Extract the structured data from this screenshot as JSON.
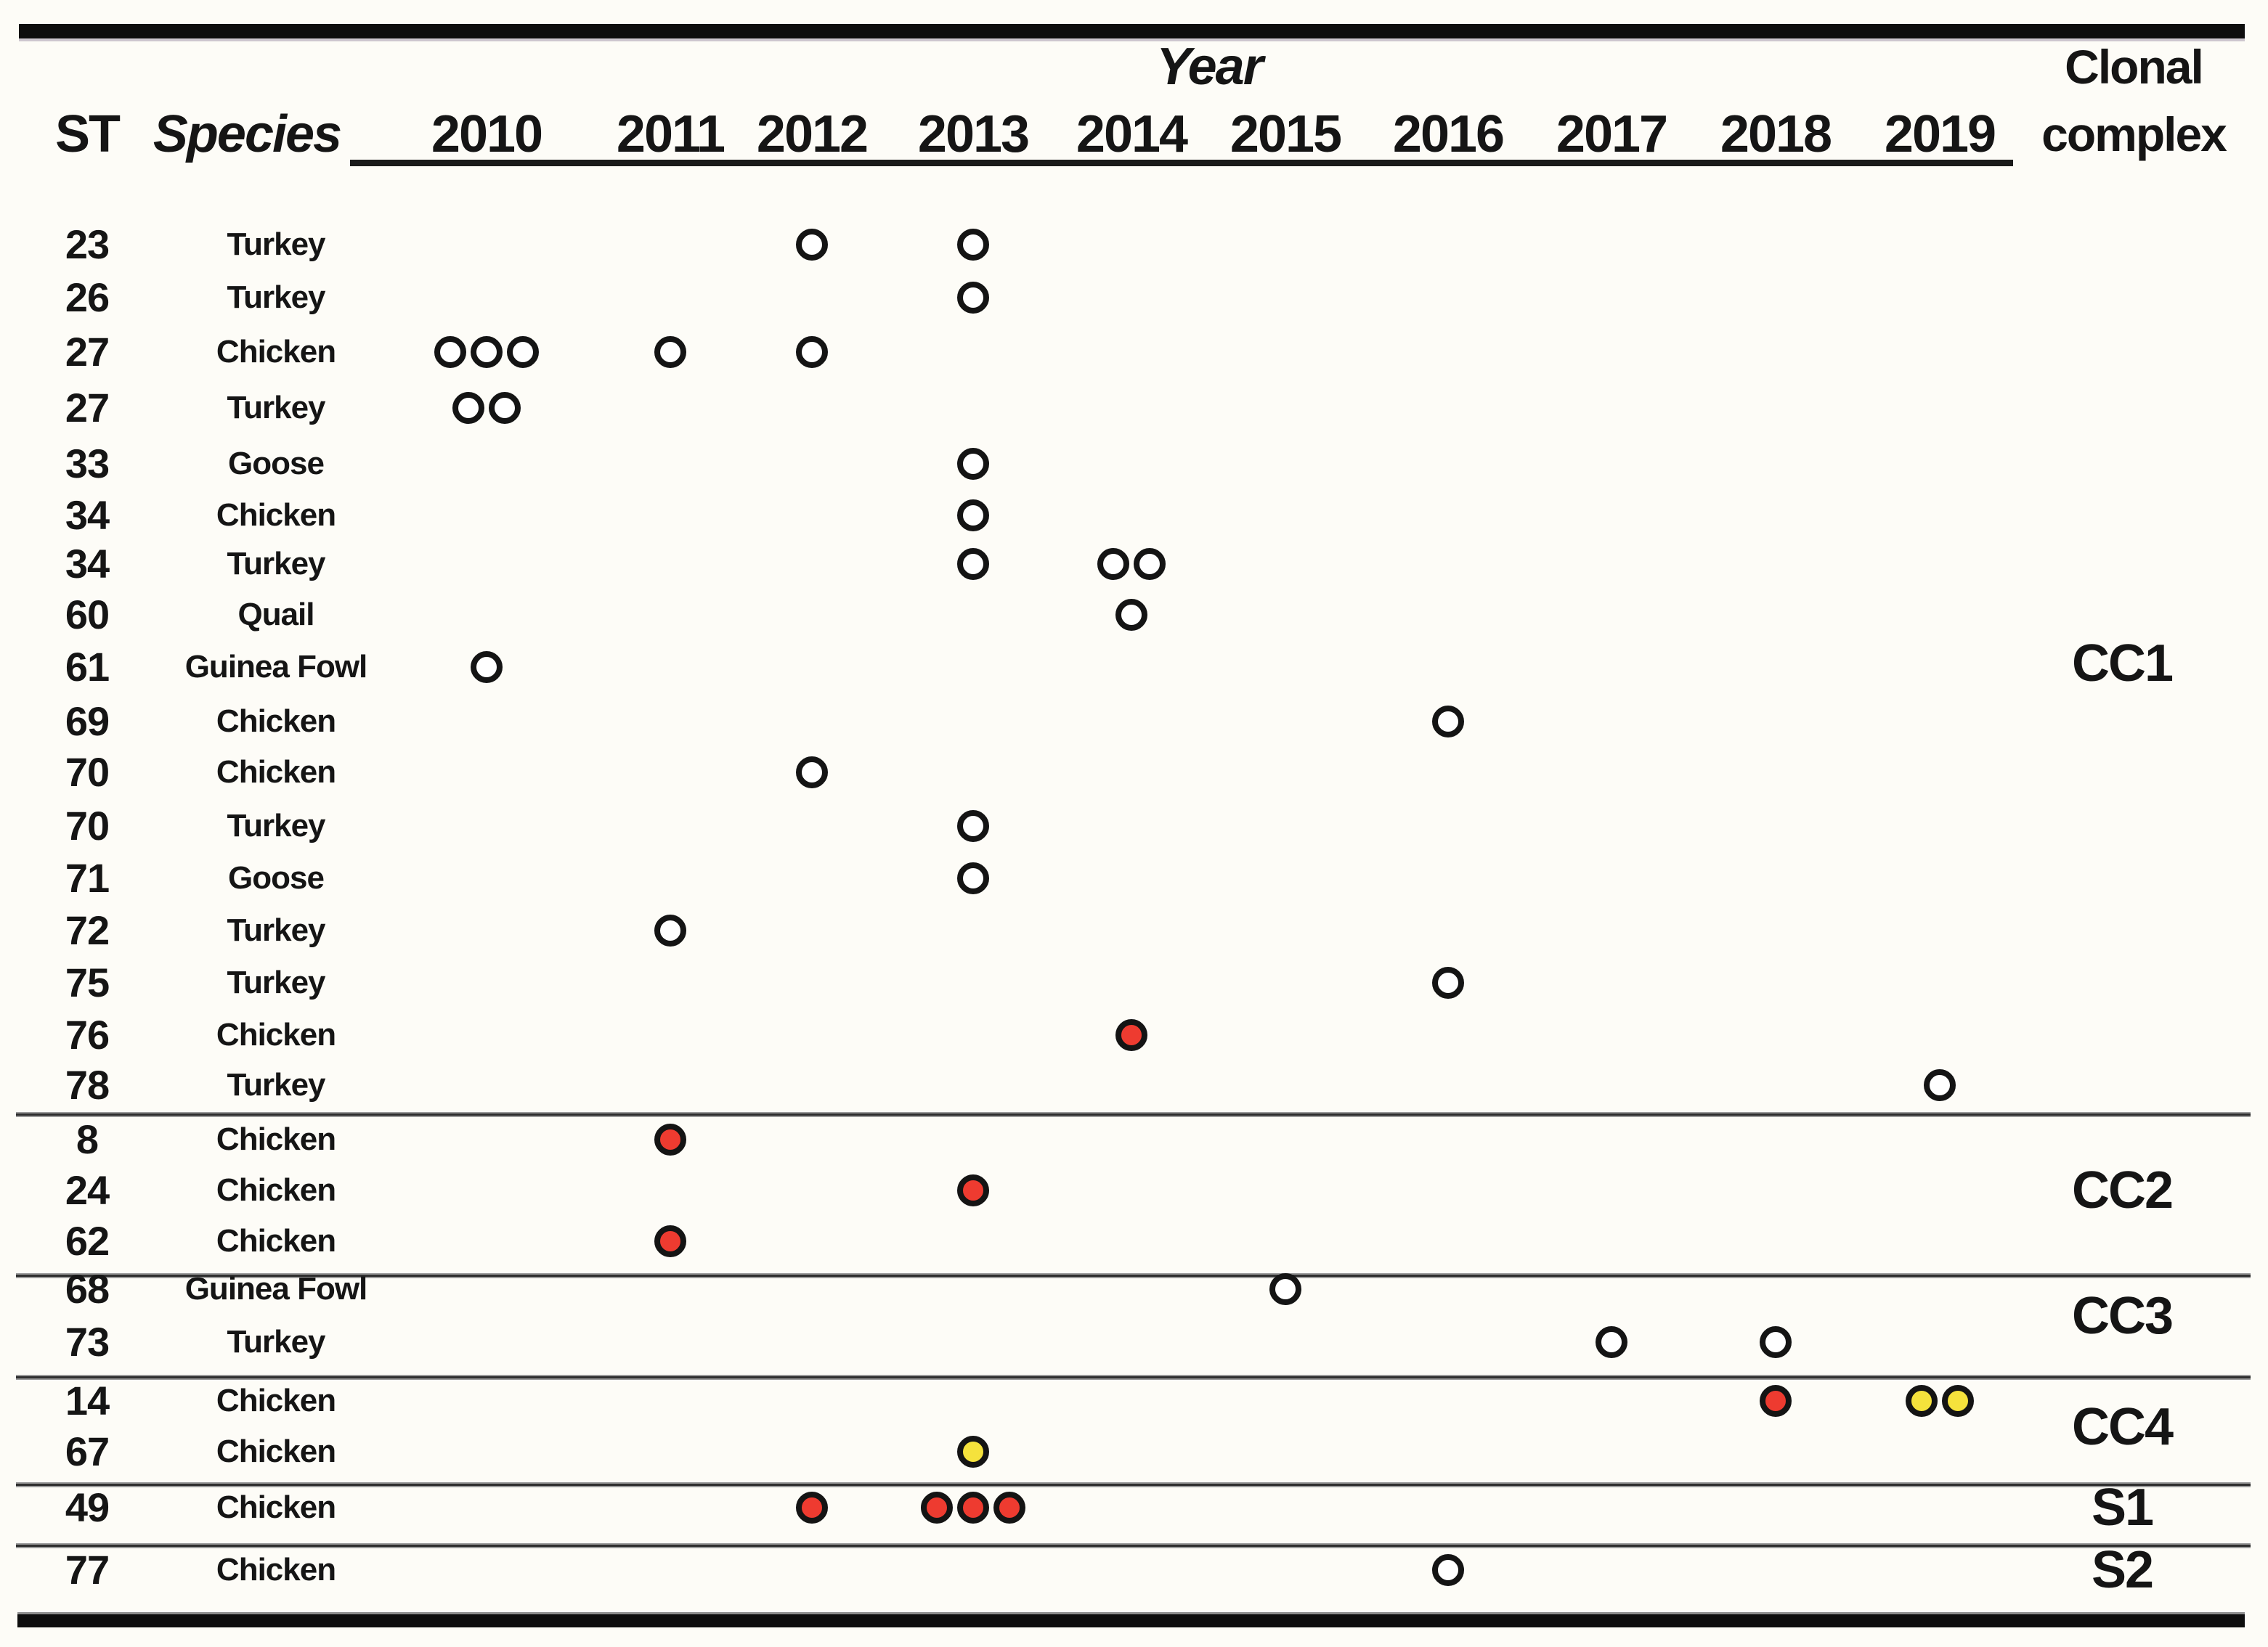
{
  "header": {
    "st": "ST",
    "species": "Species",
    "year_axis_title": "Year",
    "clonal_complex_line1": "Clonal",
    "clonal_complex_line2": "complex"
  },
  "colors": {
    "white": "#FFFFFF",
    "red": "#EE3B30",
    "yellow": "#F5E23C",
    "outline": "#141414",
    "text": "#151515",
    "background": "#FDFCF7"
  },
  "chart_data": {
    "type": "scatter",
    "xlabel": "Year",
    "x": [
      "2010",
      "2011",
      "2012",
      "2013",
      "2014",
      "2015",
      "2016",
      "2017",
      "2018",
      "2019"
    ],
    "xlim": [
      "2010",
      "2019"
    ],
    "grid": false,
    "legend_position": "none",
    "marker_colors_used": [
      "white",
      "red",
      "yellow"
    ],
    "right_column_title": "Clonal complex",
    "groups": [
      {
        "label": "CC1",
        "rows": [
          {
            "st": "23",
            "species": "Turkey",
            "markers": [
              {
                "year": "2012",
                "color": "white",
                "count": 1
              },
              {
                "year": "2013",
                "color": "white",
                "count": 1
              }
            ]
          },
          {
            "st": "26",
            "species": "Turkey",
            "markers": [
              {
                "year": "2013",
                "color": "white",
                "count": 1
              }
            ]
          },
          {
            "st": "27",
            "species": "Chicken",
            "markers": [
              {
                "year": "2010",
                "color": "white",
                "count": 3
              },
              {
                "year": "2011",
                "color": "white",
                "count": 1
              },
              {
                "year": "2012",
                "color": "white",
                "count": 1
              }
            ]
          },
          {
            "st": "27",
            "species": "Turkey",
            "markers": [
              {
                "year": "2010",
                "color": "white",
                "count": 2
              }
            ]
          },
          {
            "st": "33",
            "species": "Goose",
            "markers": [
              {
                "year": "2013",
                "color": "white",
                "count": 1
              }
            ]
          },
          {
            "st": "34",
            "species": "Chicken",
            "markers": [
              {
                "year": "2013",
                "color": "white",
                "count": 1
              }
            ]
          },
          {
            "st": "34",
            "species": "Turkey",
            "markers": [
              {
                "year": "2013",
                "color": "white",
                "count": 1
              },
              {
                "year": "2014",
                "color": "white",
                "count": 2
              }
            ]
          },
          {
            "st": "60",
            "species": "Quail",
            "markers": [
              {
                "year": "2014",
                "color": "white",
                "count": 1
              }
            ]
          },
          {
            "st": "61",
            "species": "Guinea Fowl",
            "markers": [
              {
                "year": "2010",
                "color": "white",
                "count": 1
              }
            ]
          },
          {
            "st": "69",
            "species": "Chicken",
            "markers": [
              {
                "year": "2016",
                "color": "white",
                "count": 1
              }
            ]
          },
          {
            "st": "70",
            "species": "Chicken",
            "markers": [
              {
                "year": "2012",
                "color": "white",
                "count": 1
              }
            ]
          },
          {
            "st": "70",
            "species": "Turkey",
            "markers": [
              {
                "year": "2013",
                "color": "white",
                "count": 1
              }
            ]
          },
          {
            "st": "71",
            "species": "Goose",
            "markers": [
              {
                "year": "2013",
                "color": "white",
                "count": 1
              }
            ]
          },
          {
            "st": "72",
            "species": "Turkey",
            "markers": [
              {
                "year": "2011",
                "color": "white",
                "count": 1
              }
            ]
          },
          {
            "st": "75",
            "species": "Turkey",
            "markers": [
              {
                "year": "2016",
                "color": "white",
                "count": 1
              }
            ]
          },
          {
            "st": "76",
            "species": "Chicken",
            "markers": [
              {
                "year": "2014",
                "color": "red",
                "count": 1
              }
            ]
          },
          {
            "st": "78",
            "species": "Turkey",
            "markers": [
              {
                "year": "2019",
                "color": "white",
                "count": 1
              }
            ]
          }
        ]
      },
      {
        "label": "CC2",
        "rows": [
          {
            "st": "8",
            "species": "Chicken",
            "markers": [
              {
                "year": "2011",
                "color": "red",
                "count": 1
              }
            ]
          },
          {
            "st": "24",
            "species": "Chicken",
            "markers": [
              {
                "year": "2013",
                "color": "red",
                "count": 1
              }
            ]
          },
          {
            "st": "62",
            "species": "Chicken",
            "markers": [
              {
                "year": "2011",
                "color": "red",
                "count": 1
              }
            ]
          }
        ]
      },
      {
        "label": "CC3",
        "rows": [
          {
            "st": "68",
            "species": "Guinea Fowl",
            "markers": [
              {
                "year": "2015",
                "color": "white",
                "count": 1
              }
            ]
          },
          {
            "st": "73",
            "species": "Turkey",
            "markers": [
              {
                "year": "2017",
                "color": "white",
                "count": 1
              },
              {
                "year": "2018",
                "color": "white",
                "count": 1
              }
            ]
          }
        ]
      },
      {
        "label": "CC4",
        "rows": [
          {
            "st": "14",
            "species": "Chicken",
            "markers": [
              {
                "year": "2018",
                "color": "red",
                "count": 1
              },
              {
                "year": "2019",
                "color": "yellow",
                "count": 2
              }
            ]
          },
          {
            "st": "67",
            "species": "Chicken",
            "markers": [
              {
                "year": "2013",
                "color": "yellow",
                "count": 1
              }
            ]
          }
        ]
      },
      {
        "label": "S1",
        "rows": [
          {
            "st": "49",
            "species": "Chicken",
            "markers": [
              {
                "year": "2012",
                "color": "red",
                "count": 1
              },
              {
                "year": "2013",
                "color": "red",
                "count": 3
              }
            ]
          }
        ]
      },
      {
        "label": "S2",
        "rows": [
          {
            "st": "77",
            "species": "Chicken",
            "markers": [
              {
                "year": "2016",
                "color": "white",
                "count": 1
              }
            ]
          }
        ]
      }
    ]
  }
}
